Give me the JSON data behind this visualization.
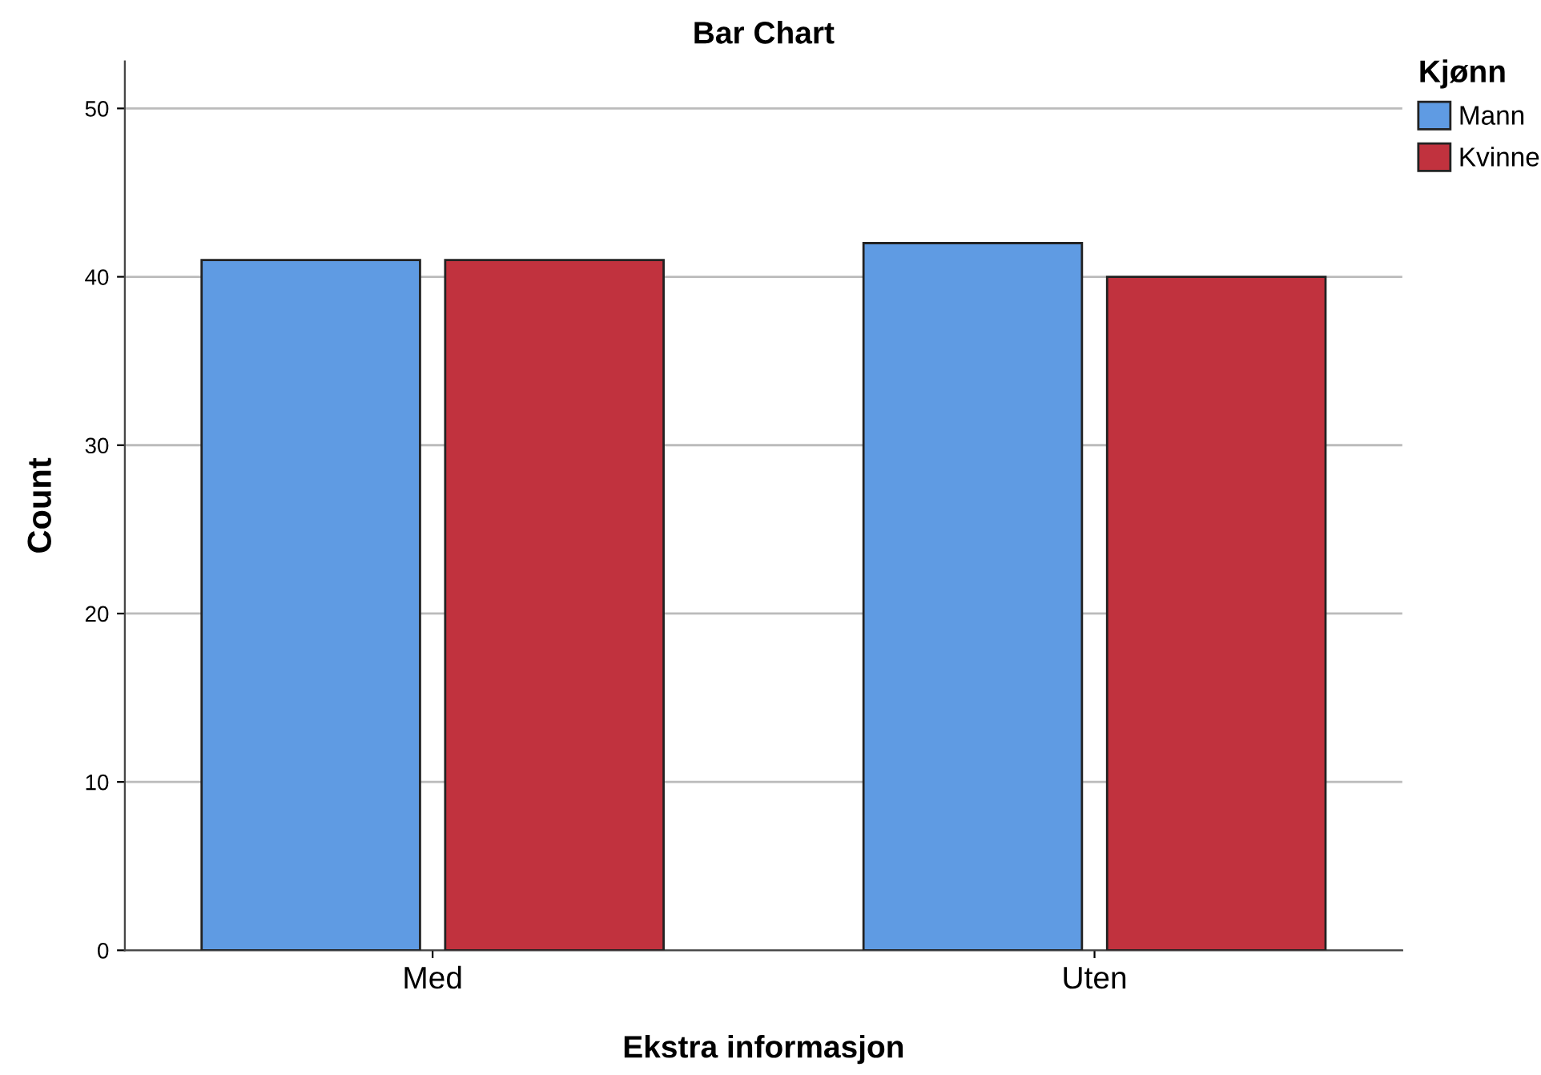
{
  "chart_data": {
    "type": "bar",
    "title": "Bar Chart",
    "xlabel": "Ekstra informasjon",
    "ylabel": "Count",
    "legend_title": "Kjønn",
    "categories": [
      "Med",
      "Uten"
    ],
    "series": [
      {
        "name": "Mann",
        "color": "#5f9be3",
        "values": [
          41,
          42
        ]
      },
      {
        "name": "Kvinne",
        "color": "#c1323e",
        "values": [
          41,
          40
        ]
      }
    ],
    "ylim": [
      0,
      52.8
    ],
    "yticks": [
      0,
      10,
      20,
      30,
      40,
      50
    ],
    "grid": "y",
    "legend": "top right"
  }
}
